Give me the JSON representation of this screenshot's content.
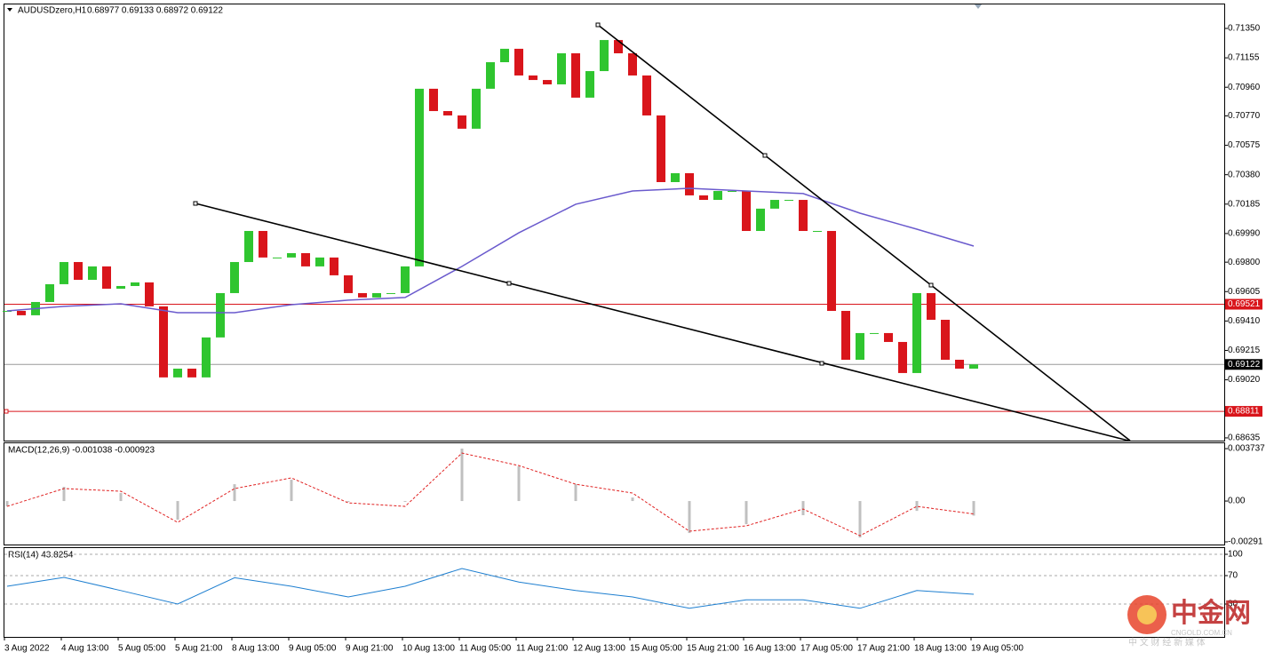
{
  "chart_data": [
    {
      "type": "candlestick",
      "title": "AUDUSDzero,H1",
      "ohlc_label": "0.68977 0.69133 0.68972 0.69122",
      "categories": [
        "3 Aug 2022",
        null,
        null,
        null,
        "4 Aug 13:00",
        null,
        null,
        null,
        "5 Aug 05:00",
        null,
        null,
        null,
        "5 Aug 21:00",
        null,
        null,
        null,
        "8 Aug 13:00",
        null,
        null,
        null,
        "9 Aug 05:00",
        null,
        null,
        null,
        "9 Aug 21:00",
        null,
        null,
        null,
        "10 Aug 13:00",
        null,
        null,
        null,
        "11 Aug 05:00",
        null,
        null,
        null,
        "11 Aug 21:00",
        null,
        null,
        null,
        "12 Aug 13:00",
        null,
        null,
        null,
        "15 Aug 05:00",
        null,
        null,
        null,
        "15 Aug 21:00",
        null,
        null,
        null,
        "16 Aug 13:00",
        null,
        null,
        null,
        "17 Aug 05:00",
        null,
        null,
        null,
        "17 Aug 21:00",
        null,
        null,
        null,
        "18 Aug 13:00",
        null,
        null,
        null,
        "19 Aug 05:00"
      ],
      "values": [
        0.69477,
        0.69448,
        0.69536,
        0.69654,
        0.69801,
        0.69683,
        0.69772,
        0.69624,
        0.69642,
        0.69666,
        0.69507,
        0.69036,
        0.69094,
        0.69036,
        0.69301,
        0.69595,
        0.69801,
        0.70007,
        0.69831,
        0.69831,
        0.6986,
        0.69772,
        0.69831,
        0.69713,
        0.69595,
        0.69566,
        0.69595,
        0.69595,
        0.69772,
        0.7095,
        0.70802,
        0.70773,
        0.70685,
        0.7095,
        0.71126,
        0.71215,
        0.71038,
        0.71008,
        0.70979,
        0.71185,
        0.70891,
        0.71067,
        0.71273,
        0.71185,
        0.71038,
        0.70773,
        0.70331,
        0.7039,
        0.70243,
        0.70213,
        0.70272,
        0.70272,
        0.70007,
        0.70155,
        0.70213,
        0.70213,
        0.70007,
        0.70007,
        0.69477,
        0.69153,
        0.6933,
        0.6933,
        0.69271,
        0.69065,
        0.69595,
        0.69418,
        0.69153,
        0.69094,
        0.69122
      ],
      "up_color": "#2fc52f",
      "down_color": "#d9151b",
      "ma": {
        "color": "#6a5acd",
        "values": [
          0.69477,
          0.69507,
          0.69524,
          0.69465,
          0.69465,
          0.69518,
          0.69548,
          0.69566,
          0.69772,
          0.69995,
          0.70184,
          0.70272,
          0.7029,
          0.70272,
          0.70255,
          0.70125,
          0.70019,
          0.69907
        ]
      },
      "levels": [
        {
          "value": 0.69521,
          "color": "#d9151b"
        },
        {
          "value": 0.69122,
          "color": "#000000"
        },
        {
          "value": 0.68811,
          "color": "#d9151b"
        }
      ],
      "ylim": [
        0.68617,
        0.71509
      ],
      "yticks": [
        {
          "value": 0.7135,
          "label": "0.71350"
        },
        0.71155,
        {
          "value": 0.7096,
          "label": "0.70960"
        },
        {
          "value": 0.7077,
          "label": "0.70770"
        },
        0.70575,
        {
          "value": 0.7038,
          "label": "0.70380"
        },
        0.70185,
        {
          "value": 0.6999,
          "label": "0.69990"
        },
        {
          "value": 0.698,
          "label": "0.69800"
        },
        0.69605,
        {
          "value": 0.6941,
          "label": "0.69410"
        },
        0.69215,
        {
          "value": 0.6902,
          "label": "0.69020"
        },
        0.68635
      ]
    },
    {
      "type": "macd",
      "title": "MACD(12,26,9) -0.001038 -0.000923",
      "series": [
        {
          "color": "#c0c0c0",
          "values": [
            -0.00038,
            0.00101,
            0.00057,
            -0.00133,
            0.0012,
            0.00152,
            -6e-05,
            -6e-05,
            0.00374,
            0.00247,
            0.0012,
            0.00025,
            -0.00228,
            -0.00165,
            -0.00101,
            -0.0026,
            -0.0007,
            -0.00104
          ]
        },
        {
          "color": "#e02020",
          "values": [
            -0.00038,
            0.00089,
            0.0007,
            -0.00152,
            0.00089,
            0.00165,
            -0.00013,
            -0.00038,
            0.00342,
            0.00253,
            0.0012,
            0.00057,
            -0.00215,
            -0.00177,
            -0.00057,
            -0.00247,
            -0.00038,
            -0.00092
          ]
        }
      ],
      "ylim": [
        -0.0031,
        0.00412
      ],
      "yticks": [
        0.003737,
        {
          "value": 0,
          "label": "0.00"
        },
        -0.00291
      ]
    },
    {
      "type": "rsi",
      "title": "RSI(14) 43.8254",
      "color": "#1e7fd0",
      "values": [
        55,
        67.5,
        49,
        30,
        67,
        55,
        40,
        55,
        80,
        61,
        49,
        40,
        24,
        36,
        36,
        24,
        49,
        43.8254
      ],
      "ylim": [
        -16.25,
        108.75
      ],
      "yticks": [
        100,
        70,
        30
      ]
    }
  ],
  "watermark": {
    "brand": "中金网",
    "site": "CNGOLD.COM.CN",
    "slogan": "中 文 财 经 新 媒 体"
  }
}
